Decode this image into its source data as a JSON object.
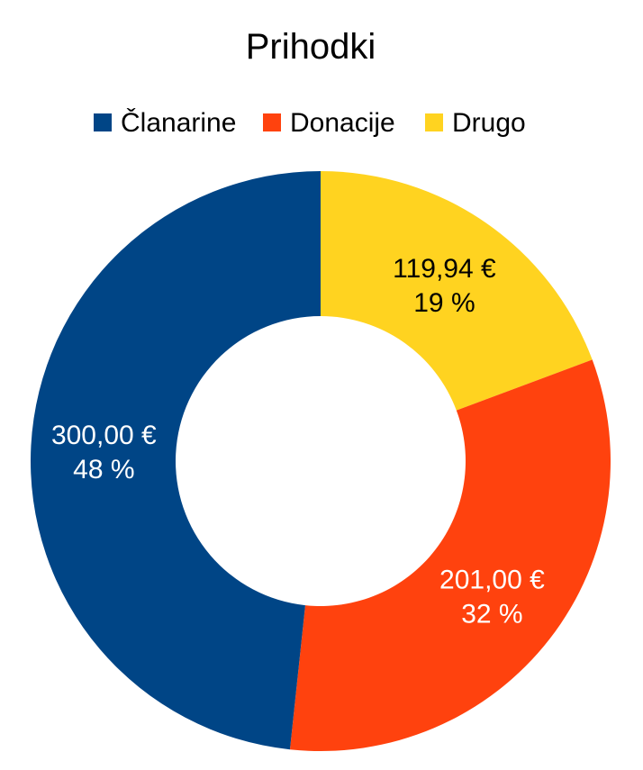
{
  "chart_data": {
    "type": "pie",
    "variant": "donut",
    "title": "Prihodki",
    "legend_position": "top",
    "series": [
      {
        "name": "Članarine",
        "value": 300.0,
        "value_label": "300,00 €",
        "percent_label": "48 %",
        "color": "#004586",
        "label_color": "#ffffff"
      },
      {
        "name": "Donacije",
        "value": 201.0,
        "value_label": "201,00 €",
        "percent_label": "32 %",
        "color": "#ff420e",
        "label_color": "#ffffff"
      },
      {
        "name": "Drugo",
        "value": 119.94,
        "value_label": "119,94 €",
        "percent_label": "19 %",
        "color": "#ffd320",
        "label_color": "#000000"
      }
    ]
  }
}
